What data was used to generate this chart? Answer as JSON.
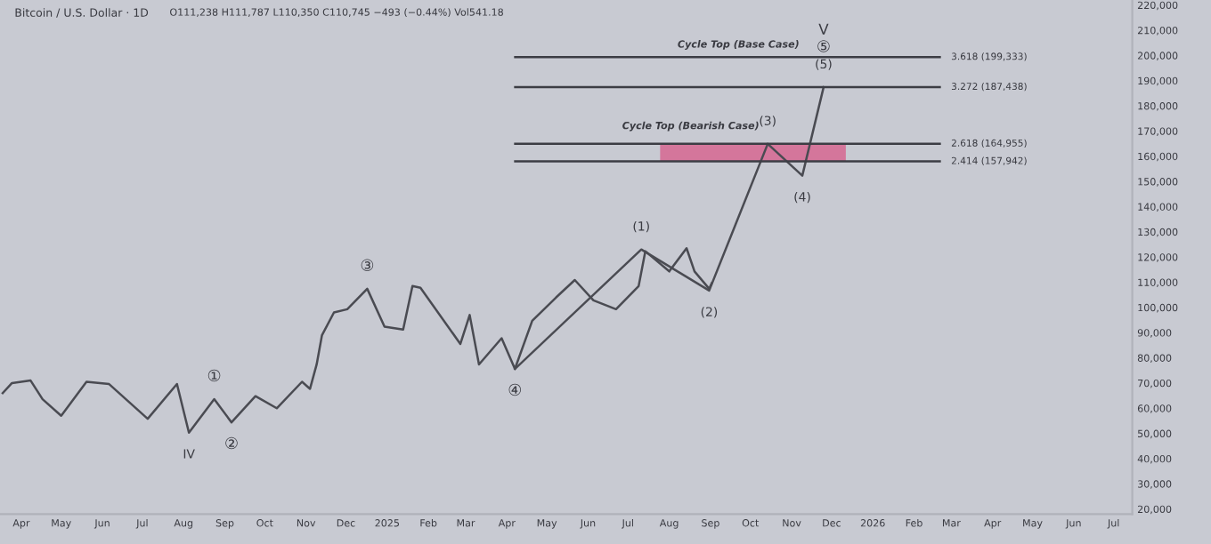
{
  "chart_data": {
    "type": "line",
    "title": "Bitcoin / U.S. Dollar · 1D",
    "subtitle": "O111,238 H111,787 L110,350 C110,745 −493 (−0.44%) Vol541.18",
    "xlim": [
      "2024-03-16",
      "2026-07-15"
    ],
    "ylim": [
      18000,
      222000
    ],
    "xticks": [
      {
        "value": "2024-04-01",
        "label": "Apr"
      },
      {
        "value": "2024-05-01",
        "label": "May"
      },
      {
        "value": "2024-06-01",
        "label": "Jun"
      },
      {
        "value": "2024-07-01",
        "label": "Jul"
      },
      {
        "value": "2024-08-01",
        "label": "Aug"
      },
      {
        "value": "2024-09-01",
        "label": "Sep"
      },
      {
        "value": "2024-10-01",
        "label": "Oct"
      },
      {
        "value": "2024-11-01",
        "label": "Nov"
      },
      {
        "value": "2024-12-01",
        "label": "Dec"
      },
      {
        "value": "2025-01-01",
        "label": "2025"
      },
      {
        "value": "2025-02-01",
        "label": "Feb"
      },
      {
        "value": "2025-03-01",
        "label": "Mar"
      },
      {
        "value": "2025-04-01",
        "label": "Apr"
      },
      {
        "value": "2025-05-01",
        "label": "May"
      },
      {
        "value": "2025-06-01",
        "label": "Jun"
      },
      {
        "value": "2025-07-01",
        "label": "Jul"
      },
      {
        "value": "2025-08-01",
        "label": "Aug"
      },
      {
        "value": "2025-09-01",
        "label": "Sep"
      },
      {
        "value": "2025-10-01",
        "label": "Oct"
      },
      {
        "value": "2025-11-01",
        "label": "Nov"
      },
      {
        "value": "2025-12-01",
        "label": "Dec"
      },
      {
        "value": "2026-01-01",
        "label": "2026"
      },
      {
        "value": "2026-02-01",
        "label": "Feb"
      },
      {
        "value": "2026-03-01",
        "label": "Mar"
      },
      {
        "value": "2026-04-01",
        "label": "Apr"
      },
      {
        "value": "2026-05-01",
        "label": "May"
      },
      {
        "value": "2026-06-01",
        "label": "Jun"
      },
      {
        "value": "2026-07-01",
        "label": "Jul"
      }
    ],
    "yticks": [
      {
        "value": 20000,
        "label": "20,000"
      },
      {
        "value": 30000,
        "label": "30,000"
      },
      {
        "value": 40000,
        "label": "40,000"
      },
      {
        "value": 50000,
        "label": "50,000"
      },
      {
        "value": 60000,
        "label": "60,000"
      },
      {
        "value": 70000,
        "label": "70,000"
      },
      {
        "value": 80000,
        "label": "80,000"
      },
      {
        "value": 90000,
        "label": "90,000"
      },
      {
        "value": 100000,
        "label": "100,000"
      },
      {
        "value": 110000,
        "label": "110,000"
      },
      {
        "value": 120000,
        "label": "120,000"
      },
      {
        "value": 130000,
        "label": "130,000"
      },
      {
        "value": 140000,
        "label": "140,000"
      },
      {
        "value": 150000,
        "label": "150,000"
      },
      {
        "value": 160000,
        "label": "160,000"
      },
      {
        "value": 170000,
        "label": "170,000"
      },
      {
        "value": 180000,
        "label": "180,000"
      },
      {
        "value": 190000,
        "label": "190,000"
      },
      {
        "value": 200000,
        "label": "200,000"
      },
      {
        "value": 210000,
        "label": "210,000"
      },
      {
        "value": 220000,
        "label": "220,000"
      }
    ],
    "series": [
      {
        "color": "#4a4b52",
        "x": [
          "2024-03-18",
          "2024-03-25",
          "2024-04-08",
          "2024-04-17",
          "2024-05-01",
          "2024-05-20",
          "2024-06-06",
          "2024-07-05",
          "2024-07-27",
          "2024-08-05",
          "2024-08-24",
          "2024-09-06",
          "2024-09-24",
          "2024-10-10",
          "2024-10-29",
          "2024-11-04",
          "2024-11-09",
          "2024-11-13",
          "2024-11-22",
          "2024-12-02",
          "2024-12-17",
          "2024-12-30",
          "2025-01-13",
          "2025-01-20",
          "2025-01-26",
          "2025-02-25",
          "2025-03-04",
          "2025-03-11",
          "2025-03-28",
          "2025-04-07",
          "2025-04-20",
          "2025-05-08",
          "2025-05-22",
          "2025-06-05",
          "2025-06-22",
          "2025-07-09",
          "2025-07-14",
          "2025-08-01",
          "2025-08-14",
          "2025-08-20",
          "2025-08-31",
          "2025-09-02"
        ],
        "values": [
          66000,
          70000,
          71000,
          63600,
          57000,
          70500,
          69600,
          55800,
          69600,
          50300,
          63600,
          54400,
          64800,
          60000,
          70500,
          67700,
          77400,
          89000,
          98000,
          99300,
          107400,
          92400,
          91200,
          108500,
          107800,
          85500,
          97000,
          77400,
          87800,
          75600,
          94700,
          104000,
          110900,
          102800,
          99300,
          108500,
          122300,
          114300,
          123500,
          114300,
          107400,
          109700
        ]
      },
      {
        "color": "#4a4b52",
        "x": [
          "2025-04-07",
          "2025-07-11",
          "2025-08-31",
          "2025-10-14",
          "2025-11-09",
          "2025-11-25"
        ],
        "values": [
          75600,
          123000,
          106700,
          164900,
          152300,
          187400
        ]
      }
    ],
    "ref_lines": [
      {
        "axis": "y",
        "value": 199333,
        "label": "3.618 (199,333)",
        "color": "#3c3d44"
      },
      {
        "axis": "y",
        "value": 187438,
        "label": "3.272 (187,438)",
        "color": "#3c3d44"
      },
      {
        "axis": "y",
        "value": 164955,
        "label": "2.618 (164,955)",
        "color": "#3c3d44"
      },
      {
        "axis": "y",
        "value": 157942,
        "label": "2.414 (157,942)",
        "color": "#3c3d44"
      }
    ],
    "bands": [
      {
        "axis": "y",
        "from": 157942,
        "to": 164955,
        "label": "Cycle Top (Bearish Case)",
        "color": "#d4769b"
      }
    ],
    "annotations": [
      {
        "text": "Cycle Top (Base Case)",
        "x": "2025-09-22",
        "y": 199333
      },
      {
        "text": "IV",
        "x": "2024-08-05",
        "y": 50300
      },
      {
        "text": "②",
        "x": "2024-09-06",
        "y": 54400
      },
      {
        "text": "①",
        "x": "2024-08-24",
        "y": 63600
      },
      {
        "text": "③",
        "x": "2024-12-17",
        "y": 107400
      },
      {
        "text": "④",
        "x": "2025-04-07",
        "y": 75600
      },
      {
        "text": "(1)",
        "x": "2025-07-11",
        "y": 123000
      },
      {
        "text": "(2)",
        "x": "2025-08-31",
        "y": 106700
      },
      {
        "text": "(3)",
        "x": "2025-10-14",
        "y": 164900
      },
      {
        "text": "(4)",
        "x": "2025-11-09",
        "y": 152300
      },
      {
        "text": "(5)",
        "x": "2025-11-25",
        "y": 187400
      },
      {
        "text": "⑤",
        "x": "2025-11-25",
        "y": 187400
      },
      "V"
    ],
    "grid": false,
    "legend": false
  }
}
